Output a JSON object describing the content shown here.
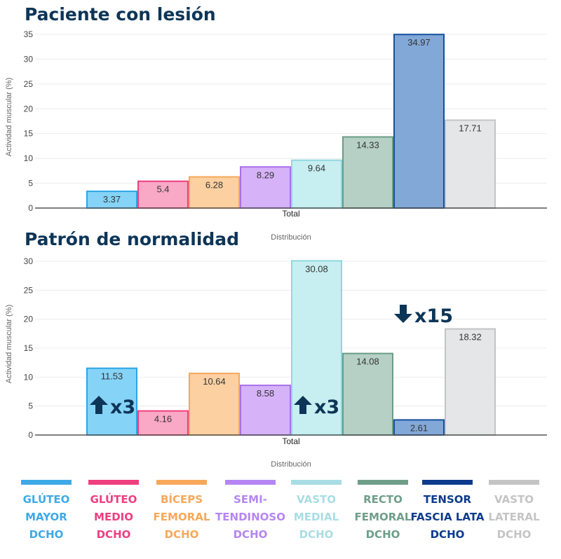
{
  "chart_data": [
    {
      "type": "bar",
      "title": "Paciente con lesión",
      "ylabel": "Actividad muscular (%)",
      "xlabel": "Distribución",
      "categories": [
        "Total"
      ],
      "ylim": [
        0,
        35
      ],
      "yticks": [
        0,
        5,
        10,
        15,
        20,
        25,
        30,
        35
      ],
      "grid": true,
      "series": [
        {
          "name": "GLÚTEO MAYOR DCHO",
          "values": [
            3.37
          ]
        },
        {
          "name": "GLÚTEO MEDIO DCHO",
          "values": [
            5.4
          ]
        },
        {
          "name": "BÍCEPS FEMORAL DCHO",
          "values": [
            6.28
          ]
        },
        {
          "name": "SEMI-TENDINOSO DCHO",
          "values": [
            8.29
          ]
        },
        {
          "name": "VASTO MEDIAL DCHO",
          "values": [
            9.64
          ]
        },
        {
          "name": "RECTO FEMORAL DCHO",
          "values": [
            14.33
          ]
        },
        {
          "name": "TENSOR FASCIA LATA DCHO",
          "values": [
            34.97
          ]
        },
        {
          "name": "VASTO LATERAL DCHO",
          "values": [
            17.71
          ]
        }
      ],
      "data_labels": [
        "3.37",
        "5.4",
        "6.28",
        "8.29",
        "9.64",
        "14.33",
        "34.97",
        "17.71"
      ]
    },
    {
      "type": "bar",
      "title": "Patrón de normalidad",
      "ylabel": "Actividad muscular (%)",
      "xlabel": "Distribución",
      "categories": [
        "Total"
      ],
      "ylim": [
        0,
        30
      ],
      "yticks": [
        0,
        5,
        10,
        15,
        20,
        25,
        30
      ],
      "grid": true,
      "series": [
        {
          "name": "GLÚTEO MAYOR DCHO",
          "values": [
            11.53
          ]
        },
        {
          "name": "GLÚTEO MEDIO DCHO",
          "values": [
            4.16
          ]
        },
        {
          "name": "BÍCEPS FEMORAL DCHO",
          "values": [
            10.64
          ]
        },
        {
          "name": "SEMI-TENDINOSO DCHO",
          "values": [
            8.58
          ]
        },
        {
          "name": "VASTO MEDIAL DCHO",
          "values": [
            30.08
          ]
        },
        {
          "name": "RECTO FEMORAL DCHO",
          "values": [
            14.08
          ]
        },
        {
          "name": "TENSOR FASCIA LATA DCHO",
          "values": [
            2.61
          ]
        },
        {
          "name": "VASTO LATERAL DCHO",
          "values": [
            18.32
          ]
        }
      ],
      "data_labels": [
        "11.53",
        "4.16",
        "10.64",
        "8.58",
        "30.08",
        "14.08",
        "2.61",
        "18.32"
      ],
      "annotations": [
        {
          "text": "x3",
          "direction": "up",
          "series_index": 0,
          "icon": "arrow-up-icon"
        },
        {
          "text": "x3",
          "direction": "up",
          "series_index": 4,
          "icon": "arrow-up-icon"
        },
        {
          "text": "x15",
          "direction": "down",
          "series_index": 6,
          "icon": "arrow-down-icon"
        }
      ]
    }
  ],
  "legend": {
    "placement": "bottom",
    "items": [
      {
        "lines": [
          "GLÚTEO",
          "MAYOR",
          "DCHO"
        ],
        "color": "#3fa9e6"
      },
      {
        "lines": [
          "GLÚTEO",
          "MEDIO",
          "DCHO"
        ],
        "color": "#ee3f7f"
      },
      {
        "lines": [
          "BÍCEPS",
          "FEMORAL",
          "DCHO"
        ],
        "color": "#f7a85a"
      },
      {
        "lines": [
          "SEMI-",
          "TENDINOSO",
          "DCHO"
        ],
        "color": "#b586f2"
      },
      {
        "lines": [
          "VASTO",
          "MEDIAL",
          "DCHO"
        ],
        "color": "#a8dde3"
      },
      {
        "lines": [
          "RECTO",
          "FEMORAL",
          "DCHO"
        ],
        "color": "#6e9e8a"
      },
      {
        "lines": [
          "TENSOR",
          "FASCIA LATA",
          "DCHO"
        ],
        "color": "#0d3b8c"
      },
      {
        "lines": [
          "VASTO",
          "LATERAL",
          "DCHO"
        ],
        "color": "#c4c4c4"
      }
    ]
  },
  "colors": {
    "fills": [
      "#85d3f7",
      "#f9a8c6",
      "#fdd0a1",
      "#d6b2f8",
      "#c7eef0",
      "#b6d0c6",
      "#82a8d8",
      "#e5e6e8"
    ],
    "strokes": [
      "#2aa6e3",
      "#ee3f7f",
      "#f7a85a",
      "#a970ea",
      "#8fd7de",
      "#6a9c86",
      "#154f9e",
      "#c4c4c4"
    ],
    "title": "#0d3557"
  }
}
